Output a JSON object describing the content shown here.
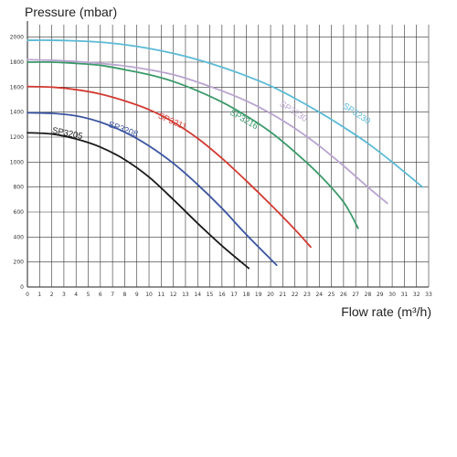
{
  "chart_data": {
    "type": "line",
    "title": "",
    "ylabel": "Pressure (mbar)",
    "xlabel": "Flow rate (m³/h)",
    "xlim": [
      0,
      33
    ],
    "ylim": [
      0,
      2100
    ],
    "xticks": [
      "0",
      "1",
      "2",
      "3",
      "4",
      "5",
      "6",
      "7",
      "8",
      "9",
      "10",
      "11",
      "12",
      "13",
      "14",
      "15",
      "16",
      "17",
      "18",
      "19",
      "20",
      "21",
      "22",
      "23",
      "24",
      "25",
      "26",
      "27",
      "28",
      "29",
      "30",
      "31",
      "32",
      "33"
    ],
    "yticks": [
      "0",
      "200",
      "400",
      "600",
      "800",
      "1000",
      "1200",
      "1400",
      "1600",
      "1800",
      "2000"
    ],
    "grid": true,
    "legend": "none",
    "series": [
      {
        "name": "SP3205",
        "color": "#1a1a1a",
        "label_at": [
          2.0,
          1235
        ],
        "label_angle": 12,
        "x": [
          0,
          2,
          4,
          6,
          8,
          10,
          12,
          14,
          16,
          18.2
        ],
        "y": [
          1235,
          1225,
          1185,
          1120,
          1020,
          880,
          700,
          510,
          330,
          150
        ]
      },
      {
        "name": "SP3208",
        "color": "#3a54a0",
        "label_at": [
          6.6,
          1285
        ],
        "label_angle": 20,
        "x": [
          0,
          2,
          4,
          6,
          8,
          10,
          12,
          14,
          16,
          18,
          20.5
        ],
        "y": [
          1395,
          1390,
          1370,
          1320,
          1240,
          1130,
          990,
          820,
          630,
          420,
          175
        ]
      },
      {
        "name": "SP3211",
        "color": "#d23a32",
        "label_at": [
          10.7,
          1355
        ],
        "label_angle": 24,
        "x": [
          0,
          2,
          4,
          6,
          8,
          10,
          12,
          14,
          16,
          18,
          20,
          22,
          23.3
        ],
        "y": [
          1605,
          1600,
          1580,
          1545,
          1490,
          1420,
          1320,
          1190,
          1030,
          850,
          660,
          460,
          320
        ]
      },
      {
        "name": "SP3216",
        "color": "#3b9a6a",
        "label_at": [
          16.6,
          1385
        ],
        "label_angle": 30,
        "x": [
          0,
          2,
          4,
          6,
          8,
          10,
          12,
          14,
          16,
          18,
          20,
          22,
          24,
          26,
          27.2
        ],
        "y": [
          1800,
          1800,
          1790,
          1775,
          1740,
          1700,
          1645,
          1570,
          1480,
          1370,
          1240,
          1080,
          900,
          680,
          470
        ]
      },
      {
        "name": "SP3230",
        "color": "#b9a3cf",
        "label_at": [
          20.7,
          1455
        ],
        "label_angle": 33,
        "x": [
          0,
          2,
          4,
          6,
          8,
          10,
          12,
          14,
          16,
          18,
          20,
          22,
          24,
          26,
          28,
          29.6
        ],
        "y": [
          1820,
          1815,
          1805,
          1790,
          1770,
          1740,
          1700,
          1640,
          1570,
          1490,
          1390,
          1270,
          1130,
          970,
          800,
          670
        ]
      },
      {
        "name": "SP3230",
        "color": "#5bbad6",
        "label_at": [
          25.9,
          1440
        ],
        "label_angle": 34,
        "x": [
          0,
          2,
          4,
          6,
          8,
          10,
          12,
          14,
          16,
          18,
          20,
          22,
          24,
          26,
          28,
          30,
          32.5
        ],
        "y": [
          1975,
          1975,
          1970,
          1960,
          1940,
          1910,
          1870,
          1820,
          1760,
          1690,
          1610,
          1510,
          1400,
          1280,
          1150,
          1000,
          800
        ]
      }
    ]
  }
}
